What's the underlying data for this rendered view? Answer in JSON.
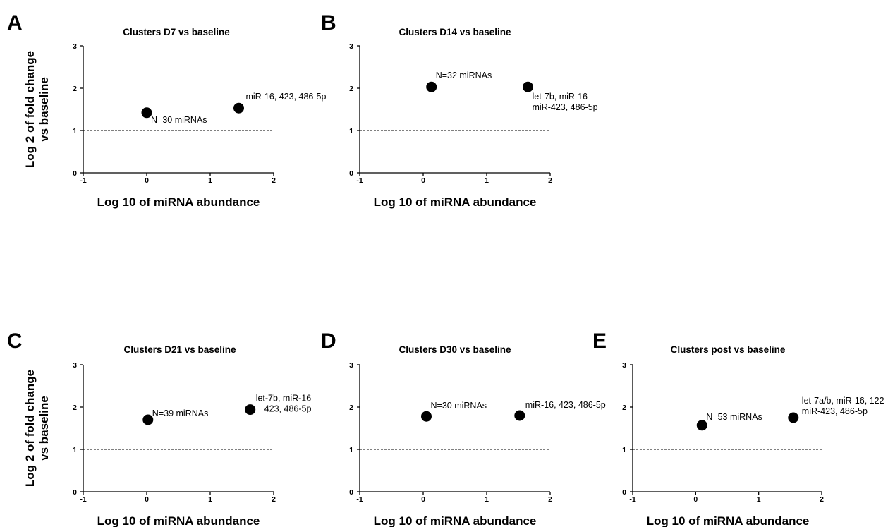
{
  "chart_data": [
    {
      "type": "scatter",
      "panel": "A",
      "title": "Clusters D7 vs baseline",
      "xlabel": "Log 10 of miRNA abundance",
      "ylabel": [
        "Log 2 of fold change",
        "vs baseline"
      ],
      "xlim": [
        -1,
        2
      ],
      "ylim": [
        0,
        3
      ],
      "xticks": [
        "-1",
        "0",
        "1",
        "2"
      ],
      "yticks": [
        "0",
        "1",
        "2",
        "3"
      ],
      "reference_line_y": 1,
      "points": [
        {
          "x": 0.0,
          "y": 1.42,
          "label": [
            "N=30 miRNAs"
          ]
        },
        {
          "x": 1.45,
          "y": 1.53,
          "label": [
            "miR-16, 423, 486-5p"
          ]
        }
      ]
    },
    {
      "type": "scatter",
      "panel": "B",
      "title": "Clusters D14 vs baseline",
      "xlabel": "Log 10 of miRNA abundance",
      "ylabel": [],
      "xlim": [
        -1,
        2
      ],
      "ylim": [
        0,
        3
      ],
      "xticks": [
        "-1",
        "0",
        "1",
        "2"
      ],
      "yticks": [
        "0",
        "1",
        "2",
        "3"
      ],
      "reference_line_y": 1,
      "points": [
        {
          "x": 0.13,
          "y": 2.03,
          "label": [
            "N=32 miRNAs"
          ]
        },
        {
          "x": 1.65,
          "y": 2.03,
          "label": [
            "let-7b, miR-16",
            "miR-423, 486-5p"
          ]
        }
      ]
    },
    {
      "type": "scatter",
      "panel": "C",
      "title": "Clusters  D21 vs baseline",
      "xlabel": "Log 10 of miRNA abundance",
      "ylabel": [
        "Log 2 of fold change",
        "vs baseline"
      ],
      "xlim": [
        -1,
        2
      ],
      "ylim": [
        0,
        3
      ],
      "xticks": [
        "-1",
        "0",
        "1",
        "2"
      ],
      "yticks": [
        "0",
        "1",
        "2",
        "3"
      ],
      "reference_line_y": 1,
      "points": [
        {
          "x": 0.02,
          "y": 1.7,
          "label": [
            "N=39 miRNAs"
          ]
        },
        {
          "x": 1.63,
          "y": 1.94,
          "label": [
            "let-7b, miR-16",
            "423, 486-5p"
          ]
        }
      ]
    },
    {
      "type": "scatter",
      "panel": "D",
      "title": "Clusters  D30 vs baseline",
      "xlabel": "Log 10 of miRNA abundance",
      "ylabel": [],
      "xlim": [
        -1,
        2
      ],
      "ylim": [
        0,
        3
      ],
      "xticks": [
        "-1",
        "0",
        "1",
        "2"
      ],
      "yticks": [
        "0",
        "1",
        "2",
        "3"
      ],
      "reference_line_y": 1,
      "points": [
        {
          "x": 0.05,
          "y": 1.78,
          "label": [
            "N=30 miRNAs"
          ]
        },
        {
          "x": 1.52,
          "y": 1.8,
          "label": [
            "miR-16, 423, 486-5p"
          ]
        }
      ]
    },
    {
      "type": "scatter",
      "panel": "E",
      "title": "Clusters  post vs baseline",
      "xlabel": "Log 10 of miRNA abundance",
      "ylabel": [],
      "xlim": [
        -1,
        2
      ],
      "ylim": [
        0,
        3
      ],
      "xticks": [
        "-1",
        "0",
        "1",
        "2"
      ],
      "yticks": [
        "0",
        "1",
        "2",
        "3"
      ],
      "reference_line_y": 1,
      "points": [
        {
          "x": 0.1,
          "y": 1.57,
          "label": [
            "N=53 miRNAs"
          ]
        },
        {
          "x": 1.55,
          "y": 1.75,
          "label": [
            "let-7a/b, miR-16, 122",
            "miR-423, 486-5p"
          ]
        }
      ]
    }
  ]
}
